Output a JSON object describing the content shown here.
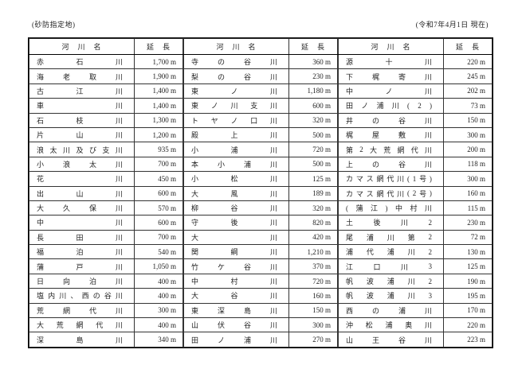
{
  "page": {
    "top_left_note": "(砂防指定地)",
    "top_right_note": "(令和7年4月1日 現在)"
  },
  "table": {
    "header": {
      "river_name": "河　川　名",
      "length": "延　長"
    },
    "groups": [
      {
        "rows": [
          {
            "name": "赤石川",
            "length": "1,700 m"
          },
          {
            "name": "海老取川",
            "length": "1,900 m"
          },
          {
            "name": "古江川",
            "length": "1,400 m"
          },
          {
            "name": "車川",
            "length": "1,400 m"
          },
          {
            "name": "石枝川",
            "length": "1,300 m"
          },
          {
            "name": "片山川",
            "length": "1,200 m"
          },
          {
            "name": "浪太川及び支川",
            "length": "935 m"
          },
          {
            "name": "小浪太川",
            "length": "700 m"
          },
          {
            "name": "花川",
            "length": "450 m"
          },
          {
            "name": "出山川",
            "length": "600 m"
          },
          {
            "name": "大久保川",
            "length": "570 m"
          },
          {
            "name": "中川",
            "length": "600 m"
          },
          {
            "name": "長田川",
            "length": "700 m"
          },
          {
            "name": "福泊川",
            "length": "540 m"
          },
          {
            "name": "蒲戸川",
            "length": "1,050 m"
          },
          {
            "name": "日向泊川",
            "length": "400 m"
          },
          {
            "name": "塩内川、西の谷川",
            "length": "400 m"
          },
          {
            "name": "荒網代川",
            "length": "300 m"
          },
          {
            "name": "大荒網代川",
            "length": "400 m"
          },
          {
            "name": "深島川",
            "length": "340 m"
          }
        ]
      },
      {
        "rows": [
          {
            "name": "寺の谷川",
            "length": "360 m"
          },
          {
            "name": "梨の谷川",
            "length": "230 m"
          },
          {
            "name": "東ノ川",
            "length": "1,180 m"
          },
          {
            "name": "東ノ川支川",
            "length": "600 m"
          },
          {
            "name": "トヤノ口川",
            "length": "320 m"
          },
          {
            "name": "殿上川",
            "length": "500 m"
          },
          {
            "name": "小浦川",
            "length": "720 m"
          },
          {
            "name": "本小浦川",
            "length": "500 m"
          },
          {
            "name": "小松川",
            "length": "125 m"
          },
          {
            "name": "大風川",
            "length": "189 m"
          },
          {
            "name": "柳谷川",
            "length": "320 m"
          },
          {
            "name": "守後川",
            "length": "820 m"
          },
          {
            "name": "大川",
            "length": "420 m"
          },
          {
            "name": "関綱川",
            "length": "1,210 m"
          },
          {
            "name": "竹ケ谷川",
            "length": "370 m"
          },
          {
            "name": "中村川",
            "length": "720 m"
          },
          {
            "name": "大谷川",
            "length": "160 m"
          },
          {
            "name": "東深島川",
            "length": "150 m"
          },
          {
            "name": "山伏谷川",
            "length": "300 m"
          },
          {
            "name": "田ノ浦川",
            "length": "270 m"
          }
        ]
      },
      {
        "rows": [
          {
            "name": "源十川",
            "length": "220 m"
          },
          {
            "name": "下梶寄川",
            "length": "245 m"
          },
          {
            "name": "中ノ川",
            "length": "202 m"
          },
          {
            "name": "田ノ浦川(2)",
            "length": "73 m"
          },
          {
            "name": "井の谷川",
            "length": "150 m"
          },
          {
            "name": "梶屋敷川",
            "length": "300 m"
          },
          {
            "name": "第2大荒網代川",
            "length": "200 m"
          },
          {
            "name": "上の谷川",
            "length": "118 m"
          },
          {
            "name": "カマス網代川(1号)",
            "length": "300 m"
          },
          {
            "name": "カマス網代川(2号)",
            "length": "160 m"
          },
          {
            "name": "(蒲江)中村川",
            "length": "115 m"
          },
          {
            "name": "土後川2",
            "length": "230 m"
          },
          {
            "name": "尾浦川第2",
            "length": "72 m"
          },
          {
            "name": "浦代浦川2",
            "length": "130 m"
          },
          {
            "name": "江口川3",
            "length": "125 m"
          },
          {
            "name": "帆波浦川2",
            "length": "190 m"
          },
          {
            "name": "帆波浦川3",
            "length": "195 m"
          },
          {
            "name": "西の浦川",
            "length": "170 m"
          },
          {
            "name": "沖松浦奥川",
            "length": "220 m"
          },
          {
            "name": "山王谷川",
            "length": "223 m"
          }
        ]
      }
    ]
  }
}
